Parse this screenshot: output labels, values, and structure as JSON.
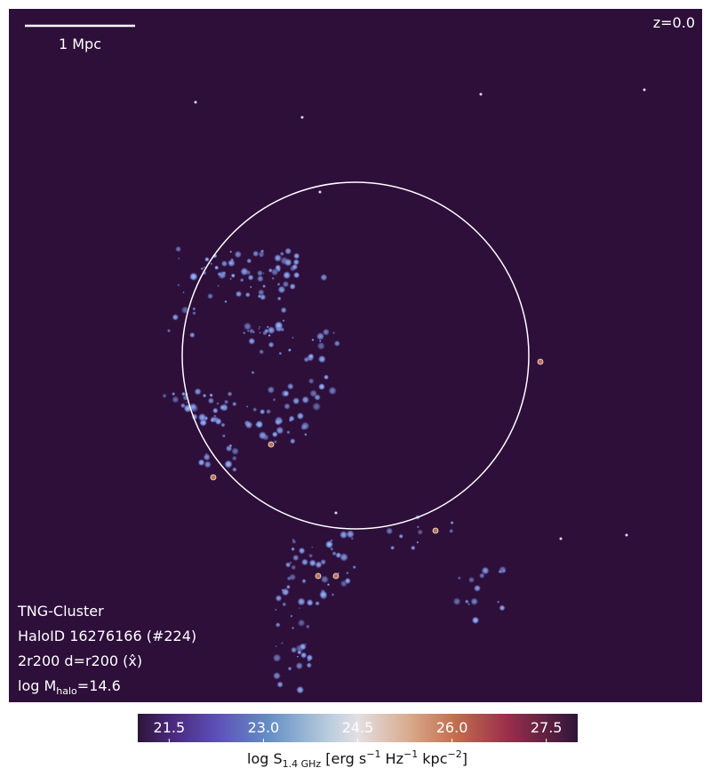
{
  "image": {
    "scale_bar": "1 Mpc",
    "redshift": "z=0.0",
    "info": {
      "simulation": "TNG-Cluster",
      "halo_id": "HaloID 16276166 (#224)",
      "projection": "2r200 d=r200 (x̂)",
      "mass": [
        "log M",
        "halo",
        "=14.6"
      ]
    }
  },
  "colorbar": {
    "label": [
      "log S",
      "1.4 GHz",
      " [erg s",
      "−1",
      " Hz",
      "−1",
      " kpc",
      "−2",
      "]"
    ],
    "lim": [
      21.0,
      28.0
    ],
    "ticks": [
      21.5,
      {
        "value": 23.0,
        "label": "23.0"
      },
      24.5,
      {
        "value": 26.0,
        "label": "26.0"
      },
      27.5
    ]
  }
}
